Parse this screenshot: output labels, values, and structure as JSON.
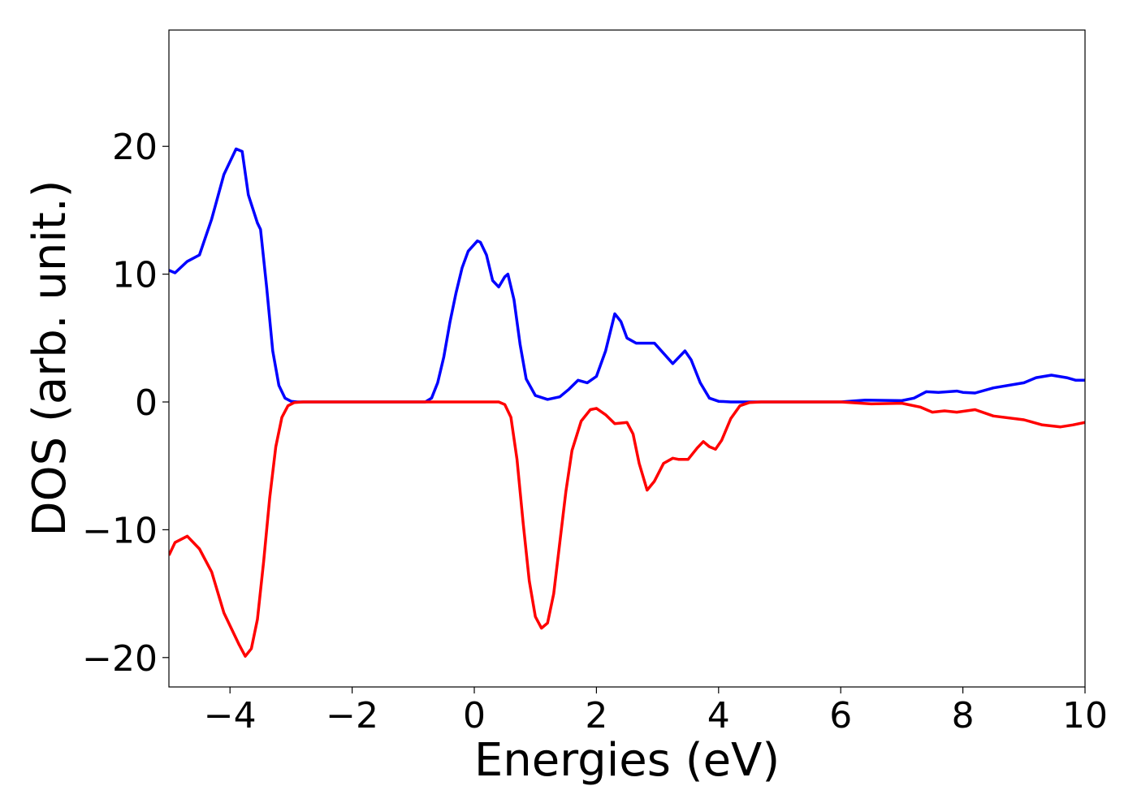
{
  "chart_data": {
    "type": "line",
    "xlabel": "Energies (eV)",
    "ylabel": "DOS (arb. unit.)",
    "xlim": [
      -5,
      10
    ],
    "ylim": [
      -22.3,
      29.1
    ],
    "xticks": [
      {
        "value": -4,
        "label": "−4"
      },
      {
        "value": -2,
        "label": "−2"
      },
      0,
      2,
      4,
      6,
      8,
      10
    ],
    "yticks": [
      {
        "value": -20,
        "label": "−20"
      },
      {
        "value": -10,
        "label": "−10"
      },
      0,
      10,
      20
    ],
    "grid": false,
    "series": [
      {
        "color": "#0000ff",
        "x": [
          -5,
          -4.9,
          -4.7,
          -4.5,
          -4.3,
          -4.1,
          -3.9,
          -3.8,
          -3.7,
          -3.55,
          -3.5,
          -3.4,
          -3.3,
          -3.2,
          -3.1,
          -3.0,
          -2.9,
          -0.8,
          -0.7,
          -0.6,
          -0.5,
          -0.4,
          -0.3,
          -0.2,
          -0.1,
          0.05,
          0.1,
          0.2,
          0.3,
          0.4,
          0.5,
          0.55,
          0.65,
          0.75,
          0.85,
          1.0,
          1.2,
          1.4,
          1.55,
          1.7,
          1.85,
          2.0,
          2.15,
          2.3,
          2.4,
          2.5,
          2.65,
          2.8,
          2.95,
          3.1,
          3.25,
          3.35,
          3.45,
          3.55,
          3.7,
          3.85,
          4.0,
          4.2,
          6.0,
          6.4,
          7.0,
          7.2,
          7.4,
          7.6,
          7.9,
          8.0,
          8.2,
          8.5,
          9.0,
          9.2,
          9.45,
          9.7,
          9.85,
          10
        ],
        "values": [
          10.3,
          10.1,
          11.0,
          11.5,
          14.3,
          17.8,
          19.8,
          19.6,
          16.2,
          14.0,
          13.5,
          9.0,
          4.0,
          1.3,
          0.3,
          0.05,
          0,
          0,
          0.3,
          1.5,
          3.5,
          6.2,
          8.5,
          10.5,
          11.8,
          12.6,
          12.5,
          11.5,
          9.5,
          9.0,
          9.8,
          10.0,
          8.0,
          4.5,
          1.8,
          0.5,
          0.2,
          0.4,
          1.0,
          1.7,
          1.5,
          2.0,
          4.0,
          6.9,
          6.3,
          5.0,
          4.6,
          4.6,
          4.6,
          3.8,
          3.0,
          3.5,
          4.0,
          3.3,
          1.5,
          0.3,
          0.05,
          0,
          0,
          0.15,
          0.1,
          0.3,
          0.8,
          0.75,
          0.85,
          0.75,
          0.7,
          1.1,
          1.5,
          1.9,
          2.1,
          1.9,
          1.7,
          1.7
        ]
      },
      {
        "color": "#ff0000",
        "x": [
          -5,
          -4.9,
          -4.7,
          -4.5,
          -4.3,
          -4.1,
          -4.0,
          -3.85,
          -3.75,
          -3.65,
          -3.55,
          -3.45,
          -3.35,
          -3.25,
          -3.15,
          -3.05,
          -2.95,
          -2.8,
          0.4,
          0.5,
          0.6,
          0.7,
          0.8,
          0.9,
          1.0,
          1.1,
          1.2,
          1.3,
          1.4,
          1.5,
          1.6,
          1.75,
          1.9,
          2.0,
          2.15,
          2.3,
          2.5,
          2.6,
          2.7,
          2.83,
          2.95,
          3.1,
          3.25,
          3.35,
          3.5,
          3.65,
          3.75,
          3.85,
          3.95,
          4.05,
          4.2,
          4.35,
          4.5,
          4.7,
          6.0,
          6.5,
          7.0,
          7.3,
          7.5,
          7.7,
          7.9,
          8.2,
          8.5,
          9.0,
          9.3,
          9.6,
          9.8,
          10
        ],
        "values": [
          -12.0,
          -11.0,
          -10.5,
          -11.5,
          -13.3,
          -16.5,
          -17.5,
          -19.0,
          -19.9,
          -19.3,
          -17.0,
          -12.5,
          -7.5,
          -3.5,
          -1.2,
          -0.3,
          -0.05,
          0,
          0,
          -0.2,
          -1.2,
          -4.5,
          -9.5,
          -14.0,
          -16.8,
          -17.7,
          -17.3,
          -15.0,
          -11.0,
          -7.0,
          -3.8,
          -1.5,
          -0.6,
          -0.5,
          -1.0,
          -1.7,
          -1.6,
          -2.5,
          -4.8,
          -6.9,
          -6.2,
          -4.8,
          -4.4,
          -4.5,
          -4.5,
          -3.6,
          -3.1,
          -3.5,
          -3.7,
          -3.0,
          -1.3,
          -0.3,
          -0.05,
          0,
          0,
          -0.15,
          -0.1,
          -0.4,
          -0.8,
          -0.7,
          -0.8,
          -0.6,
          -1.1,
          -1.4,
          -1.8,
          -1.95,
          -1.8,
          -1.6
        ]
      }
    ]
  }
}
